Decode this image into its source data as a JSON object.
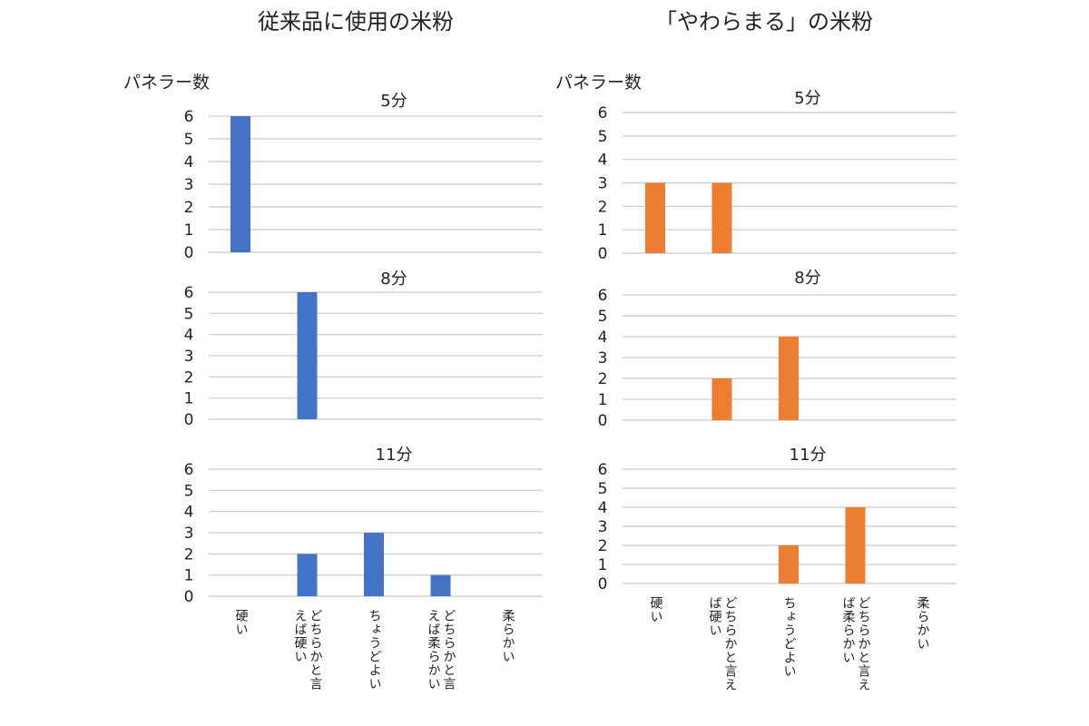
{
  "columns": [
    {
      "title": "従来品に使用の米粉",
      "ylabel": "パネラー数",
      "color": "#4472C4",
      "categories": [
        "硬い",
        "どちらかと言\nえば硬い",
        "ちょうどよい",
        "どちらかと言\nえば柔らかい",
        "柔らかい"
      ],
      "panels": [
        {
          "title": "5分",
          "values": [
            6,
            0,
            0,
            0,
            0
          ]
        },
        {
          "title": "8分",
          "values": [
            0,
            6,
            0,
            0,
            0
          ]
        },
        {
          "title": "11分",
          "values": [
            0,
            2,
            3,
            1,
            0
          ]
        }
      ]
    },
    {
      "title": "「やわらまる」の米粉",
      "ylabel": "パネラー数",
      "color": "#ED7D31",
      "categories": [
        "硬い",
        "どちらかと言え\nば硬い",
        "ちょうどよい",
        "どちらかと言え\nば柔らかい",
        "柔らかい"
      ],
      "panels": [
        {
          "title": "5分",
          "values": [
            3,
            3,
            0,
            0,
            0
          ]
        },
        {
          "title": "8分",
          "values": [
            0,
            2,
            4,
            0,
            0
          ]
        },
        {
          "title": "11分",
          "values": [
            0,
            0,
            2,
            4,
            0
          ]
        }
      ]
    }
  ],
  "chart_data": [
    {
      "type": "bar",
      "title": "5分",
      "categories": [
        "硬い",
        "どちらかと言えば硬い",
        "ちょうどよい",
        "どちらかと言えば柔らかい",
        "柔らかい"
      ],
      "series": [
        {
          "name": "従来品に使用の米粉",
          "values": [
            6,
            0,
            0,
            0,
            0
          ]
        }
      ],
      "ylim": [
        0,
        6
      ],
      "ylabel": "パネラー数"
    },
    {
      "type": "bar",
      "title": "8分",
      "categories": [
        "硬い",
        "どちらかと言えば硬い",
        "ちょうどよい",
        "どちらかと言えば柔らかい",
        "柔らかい"
      ],
      "series": [
        {
          "name": "従来品に使用の米粉",
          "values": [
            0,
            6,
            0,
            0,
            0
          ]
        }
      ],
      "ylim": [
        0,
        6
      ],
      "ylabel": "パネラー数"
    },
    {
      "type": "bar",
      "title": "11分",
      "categories": [
        "硬い",
        "どちらかと言えば硬い",
        "ちょうどよい",
        "どちらかと言えば柔らかい",
        "柔らかい"
      ],
      "series": [
        {
          "name": "従来品に使用の米粉",
          "values": [
            0,
            2,
            3,
            1,
            0
          ]
        }
      ],
      "ylim": [
        0,
        6
      ],
      "ylabel": "パネラー数"
    },
    {
      "type": "bar",
      "title": "5分",
      "categories": [
        "硬い",
        "どちらかと言えば硬い",
        "ちょうどよい",
        "どちらかと言えば柔らかい",
        "柔らかい"
      ],
      "series": [
        {
          "name": "「やわらまる」の米粉",
          "values": [
            3,
            3,
            0,
            0,
            0
          ]
        }
      ],
      "ylim": [
        0,
        6
      ],
      "ylabel": "パネラー数"
    },
    {
      "type": "bar",
      "title": "8分",
      "categories": [
        "硬い",
        "どちらかと言えば硬い",
        "ちょうどよい",
        "どちらかと言えば柔らかい",
        "柔らかい"
      ],
      "series": [
        {
          "name": "「やわらまる」の米粉",
          "values": [
            0,
            2,
            4,
            0,
            0
          ]
        }
      ],
      "ylim": [
        0,
        6
      ],
      "ylabel": "パネラー数"
    },
    {
      "type": "bar",
      "title": "11分",
      "categories": [
        "硬い",
        "どちらかと言えば硬い",
        "ちょうどよい",
        "どちらかと言えば柔らかい",
        "柔らかい"
      ],
      "series": [
        {
          "name": "「やわらまる」の米粉",
          "values": [
            0,
            0,
            2,
            4,
            0
          ]
        }
      ],
      "ylim": [
        0,
        6
      ],
      "ylabel": "パネラー数"
    }
  ]
}
